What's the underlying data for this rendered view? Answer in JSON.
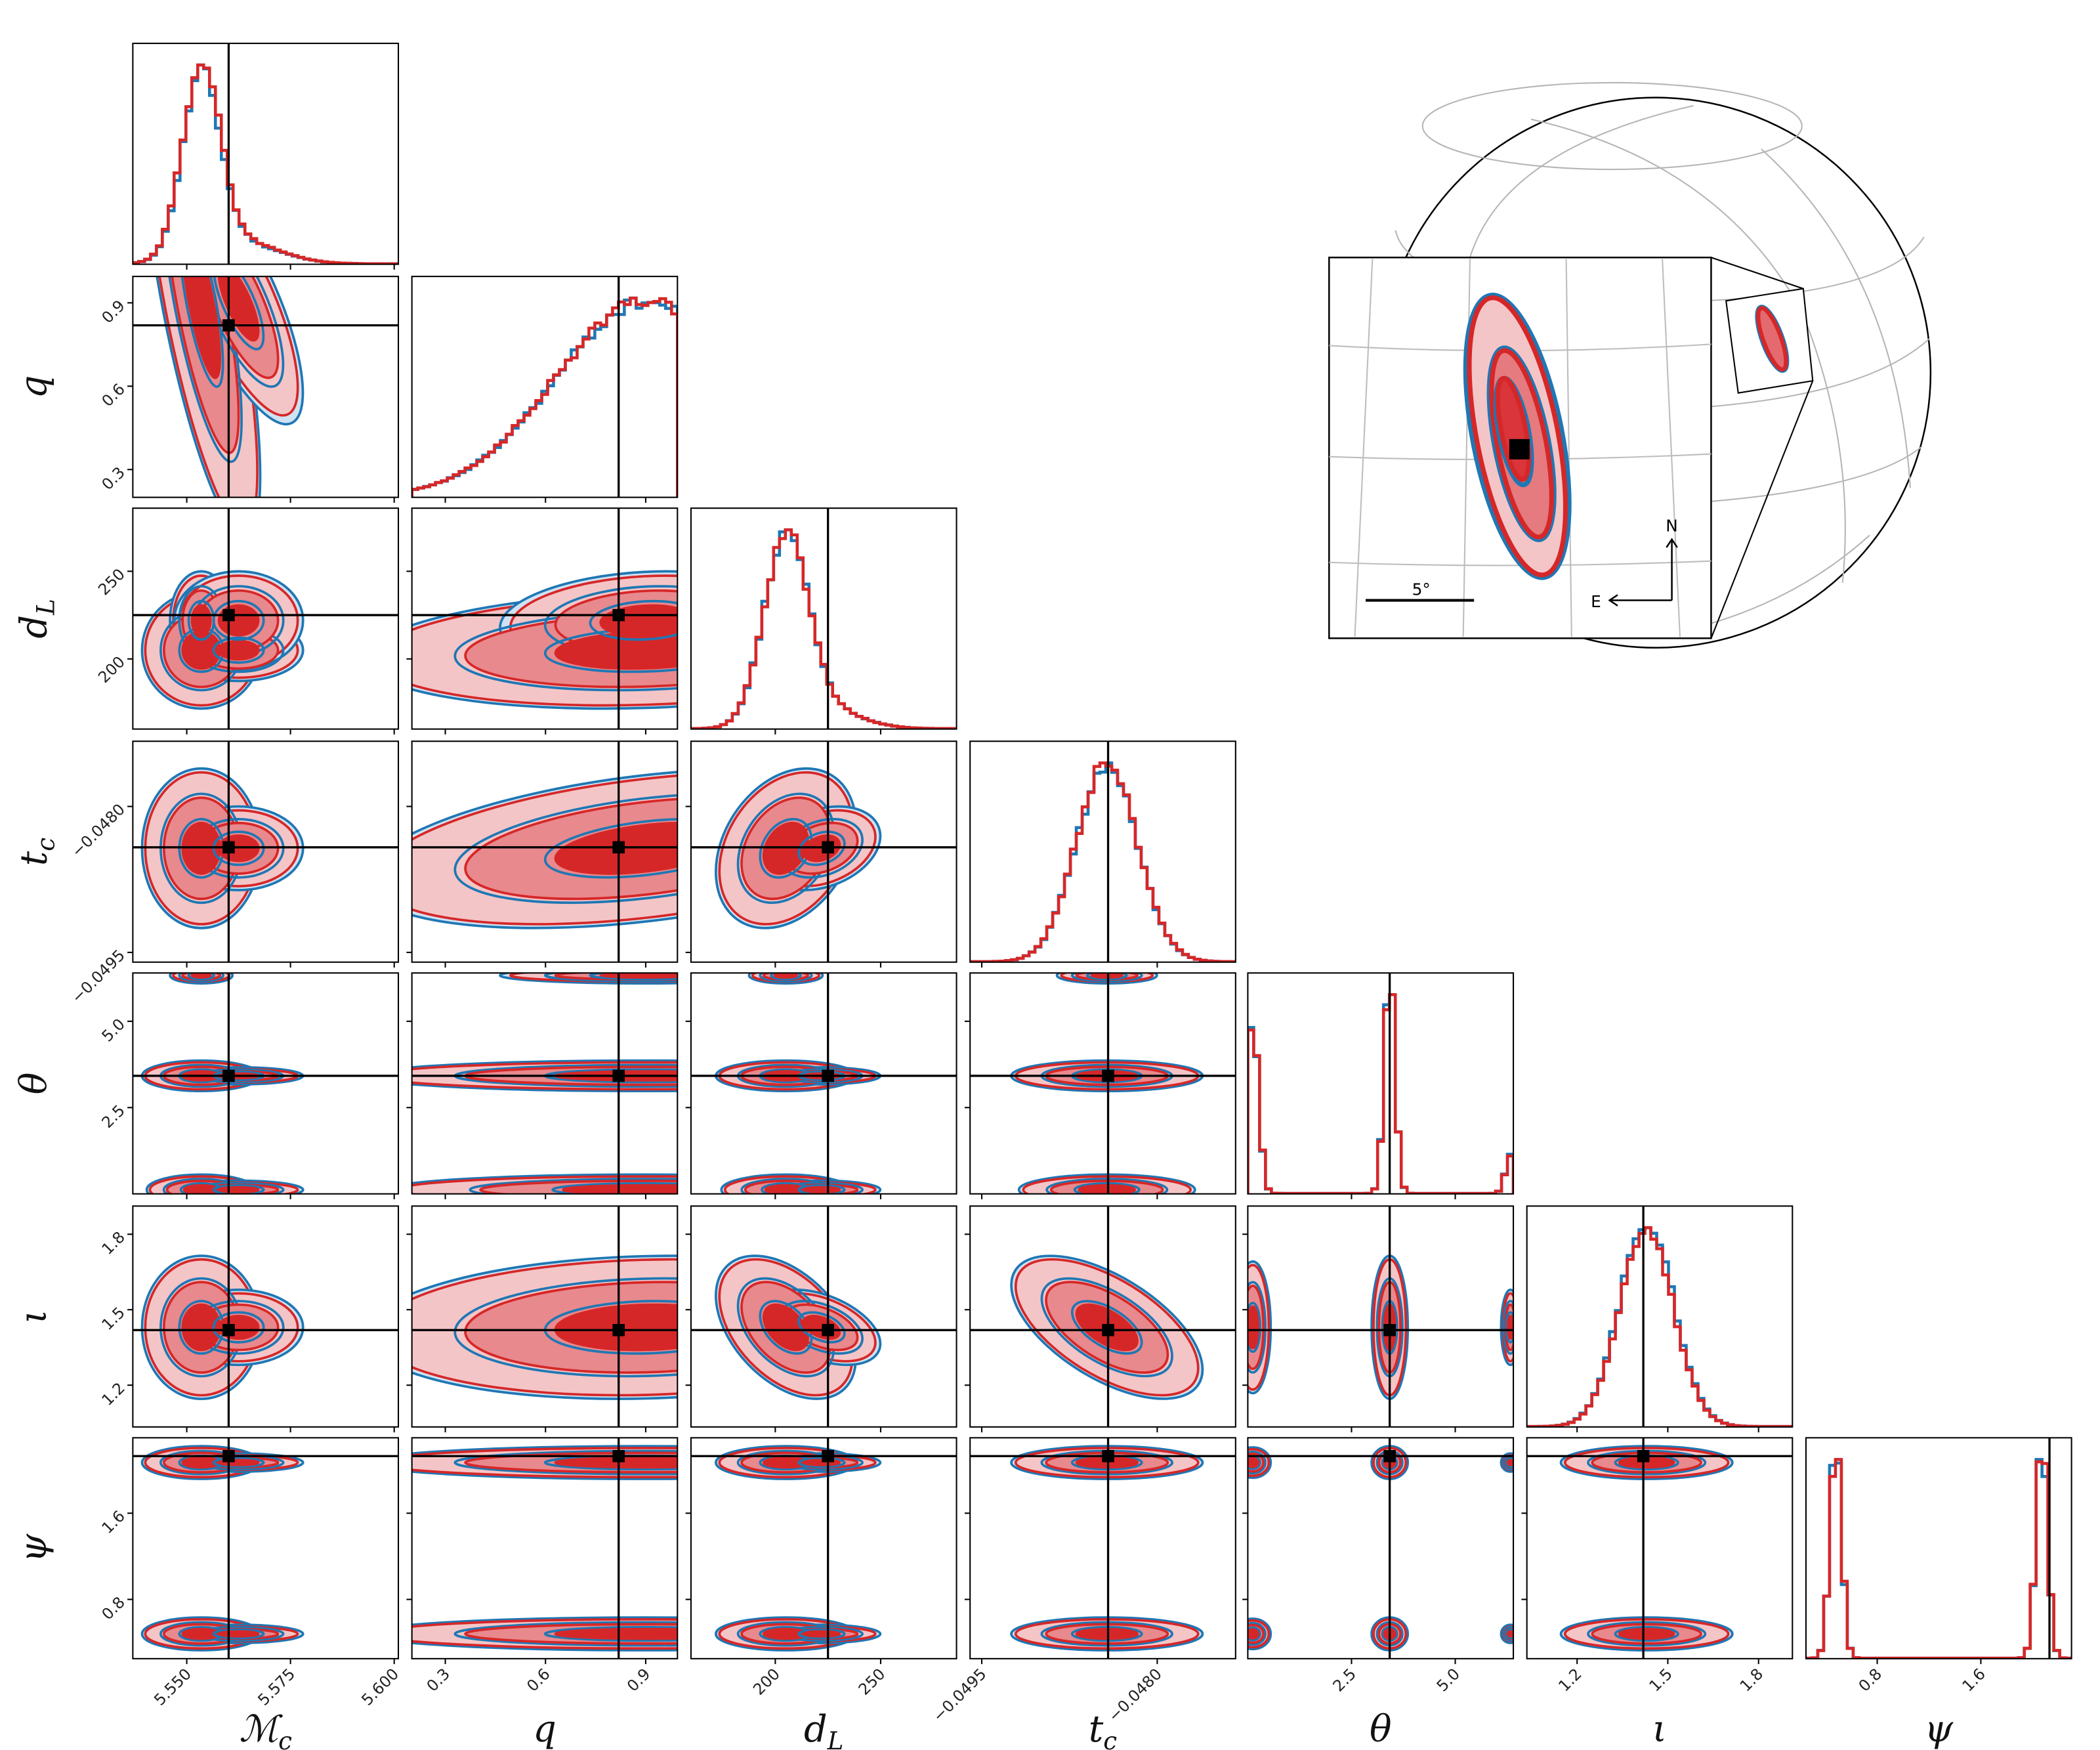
{
  "chart_data": {
    "type": "corner",
    "title": "",
    "grid": false,
    "legend": "none",
    "colors": {
      "series_a_line": "#1f77b4",
      "series_a_fill": "#cfe2f2",
      "series_b_line": "#d62728",
      "contour_fills": [
        "#f4c5c7",
        "#e8898d",
        "#d62728"
      ],
      "truth": "#000000"
    },
    "contour_levels_sigma": [
      3,
      2,
      1
    ],
    "parameters": [
      {
        "key": "Mc",
        "label": "ℳ",
        "sub": "c",
        "range": [
          5.537,
          5.601
        ],
        "ticks": [
          5.55,
          5.575,
          5.6
        ],
        "tick_labels": [
          "5.550",
          "5.575",
          "5.600"
        ],
        "truth": 5.5601,
        "components": [
          [
            5.5535,
            0.0045,
            0.8
          ],
          [
            5.5625,
            0.0095,
            0.2
          ]
        ]
      },
      {
        "key": "q",
        "label": "q",
        "sub": "",
        "range": [
          0.2,
          0.995
        ],
        "ticks": [
          0.3,
          0.6,
          0.9
        ],
        "tick_labels": [
          "0.3",
          "0.6",
          "0.9"
        ],
        "truth": 0.819,
        "components": [
          [
            0.9,
            0.27,
            1.0
          ]
        ]
      },
      {
        "key": "dL",
        "label": "d",
        "sub": "L",
        "range": [
          160,
          286
        ],
        "ticks": [
          200,
          250
        ],
        "tick_labels": [
          "200",
          "250"
        ],
        "truth": 225,
        "components": [
          [
            205,
            10.5,
            0.85
          ],
          [
            222,
            17,
            0.15
          ]
        ]
      },
      {
        "key": "tc",
        "label": "t",
        "sub": "c",
        "range": [
          -0.0496,
          -0.04733
        ],
        "ticks": [
          -0.0495,
          -0.048
        ],
        "tick_labels": [
          "−0.0495",
          "−0.0480"
        ],
        "truth": -0.04842,
        "components": [
          [
            -0.04843,
            0.00026,
            1.0
          ]
        ]
      },
      {
        "key": "theta",
        "label": "θ",
        "sub": "",
        "range": [
          0,
          6.4
        ],
        "ticks": [
          2.5,
          5.0
        ],
        "tick_labels": [
          "2.5",
          "5.0"
        ],
        "truth": 3.42,
        "components": [
          [
            0.12,
            0.14,
            0.42
          ],
          [
            3.42,
            0.13,
            0.5
          ],
          [
            6.33,
            0.12,
            0.08
          ]
        ]
      },
      {
        "key": "iota",
        "label": "ι",
        "sub": "",
        "range": [
          1.034,
          1.912
        ],
        "ticks": [
          1.2,
          1.5,
          1.8
        ],
        "tick_labels": [
          "1.2",
          "1.5",
          "1.8"
        ],
        "truth": 1.419,
        "components": [
          [
            1.43,
            0.09,
            1.0
          ]
        ]
      },
      {
        "key": "psi",
        "label": "ψ",
        "sub": "",
        "range": [
          0.25,
          2.3
        ],
        "ticks": [
          0.8,
          1.6
        ],
        "tick_labels": [
          "0.8",
          "1.6"
        ],
        "truth": 2.13,
        "components": [
          [
            0.48,
            0.045,
            0.5
          ],
          [
            2.07,
            0.045,
            0.5
          ]
        ]
      }
    ],
    "correlations": {
      "Mc|q": -0.75,
      "q|dL": 0.15,
      "q|tc": 0.4,
      "dL|tc": 0.3,
      "dL|iota": -0.45,
      "tc|iota": -0.6,
      "q|iota": 0.1
    }
  },
  "skymap": {
    "scale_label": "5°",
    "north_label": "N",
    "east_label": "E"
  }
}
